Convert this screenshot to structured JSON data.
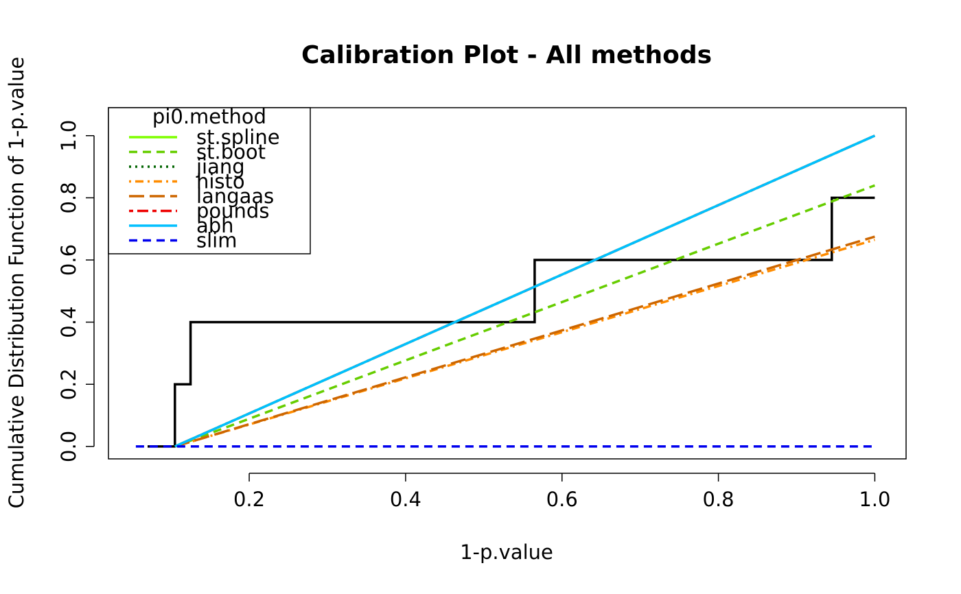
{
  "chart_data": {
    "type": "line",
    "title": "Calibration Plot - All methods",
    "xlabel": "1-p.value",
    "ylabel": "Cumulative Distribution Function of 1-p.value",
    "xlim": [
      0.02,
      1.04
    ],
    "ylim": [
      -0.04,
      1.09
    ],
    "x_ticks": [
      0.2,
      0.4,
      0.6,
      0.8,
      1.0
    ],
    "x_tick_labels": [
      "0.2",
      "0.4",
      "0.6",
      "0.8",
      "1.0"
    ],
    "y_ticks": [
      0.0,
      0.2,
      0.4,
      0.6,
      0.8,
      1.0
    ],
    "y_tick_labels": [
      "0.0",
      "0.2",
      "0.4",
      "0.6",
      "0.8",
      "1.0"
    ],
    "grid": false,
    "legend": {
      "title": "pi0.method",
      "position": "top-left",
      "entries": [
        {
          "label": "st.spline",
          "color": "#7FFF00",
          "dash": "solid"
        },
        {
          "label": "st.boot",
          "color": "#66CD00",
          "dash": "dashed"
        },
        {
          "label": "jiang",
          "color": "#006400",
          "dash": "dotted"
        },
        {
          "label": "histo",
          "color": "#FF8C00",
          "dash": "dotdash"
        },
        {
          "label": "langaas",
          "color": "#CD6600",
          "dash": "longdash"
        },
        {
          "label": "pounds",
          "color": "#EE0000",
          "dash": "twodash"
        },
        {
          "label": "abh",
          "color": "#00BFFF",
          "dash": "solid"
        },
        {
          "label": "slim",
          "color": "#0000EE",
          "dash": "dashed"
        }
      ]
    },
    "empirical_cdf": {
      "color": "#000000",
      "points": [
        [
          0.07,
          0.0
        ],
        [
          0.105,
          0.0
        ],
        [
          0.105,
          0.2
        ],
        [
          0.125,
          0.2
        ],
        [
          0.125,
          0.4
        ],
        [
          0.565,
          0.4
        ],
        [
          0.565,
          0.6
        ],
        [
          0.945,
          0.6
        ],
        [
          0.945,
          0.8
        ],
        [
          1.0,
          0.8
        ]
      ]
    },
    "series": [
      {
        "name": "st.spline",
        "color": "#7FFF00",
        "dash": "solid",
        "points": [
          [
            0.105,
            0.0
          ],
          [
            1.0,
            1.0
          ]
        ]
      },
      {
        "name": "st.boot",
        "color": "#66CD00",
        "dash": "dashed",
        "points": [
          [
            0.105,
            0.0
          ],
          [
            1.0,
            0.84
          ]
        ]
      },
      {
        "name": "jiang",
        "color": "#006400",
        "dash": "dotted",
        "points": [
          [
            0.105,
            0.0
          ],
          [
            1.0,
            1.0
          ]
        ]
      },
      {
        "name": "histo",
        "color": "#FF8C00",
        "dash": "dotdash",
        "points": [
          [
            0.105,
            0.0
          ],
          [
            1.0,
            0.665
          ]
        ]
      },
      {
        "name": "langaas",
        "color": "#CD6600",
        "dash": "longdash",
        "points": [
          [
            0.105,
            0.0
          ],
          [
            1.0,
            0.675
          ]
        ]
      },
      {
        "name": "pounds",
        "color": "#EE0000",
        "dash": "twodash",
        "points": [
          [
            0.105,
            0.0
          ],
          [
            1.0,
            1.0
          ]
        ]
      },
      {
        "name": "abh",
        "color": "#00BFFF",
        "dash": "solid",
        "points": [
          [
            0.105,
            0.0
          ],
          [
            1.0,
            1.0
          ]
        ]
      },
      {
        "name": "slim",
        "color": "#0000EE",
        "dash": "dashed",
        "points": [
          [
            0.055,
            0.0
          ],
          [
            1.0,
            0.0
          ]
        ]
      }
    ]
  }
}
